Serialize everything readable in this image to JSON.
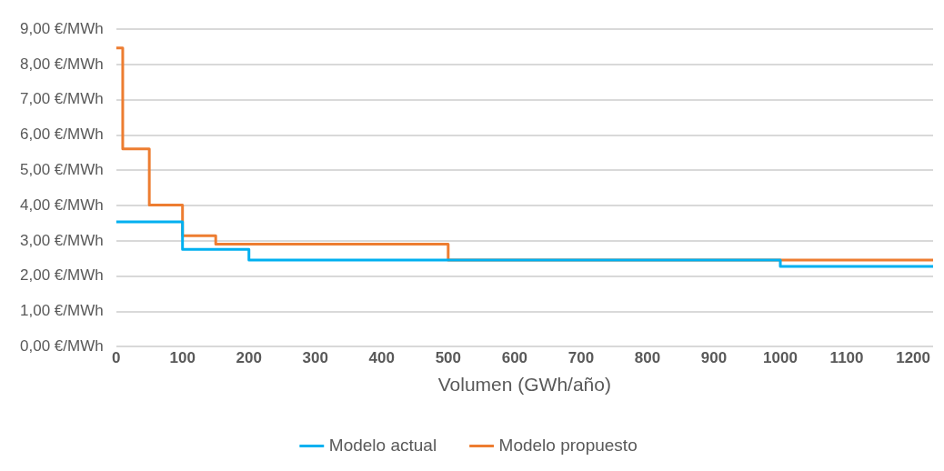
{
  "chart_data": {
    "type": "step",
    "xlabel": "Volumen (GWh/año)",
    "xlim": [
      0,
      1230
    ],
    "xticks": [
      0,
      100,
      200,
      300,
      400,
      500,
      600,
      700,
      800,
      900,
      1000,
      1100,
      1200
    ],
    "ylim": [
      0,
      9
    ],
    "yticks": [
      {
        "value": 0,
        "label": "0,00 €/MWh"
      },
      {
        "value": 1,
        "label": "1,00 €/MWh"
      },
      {
        "value": 2,
        "label": "2,00 €/MWh"
      },
      {
        "value": 3,
        "label": "3,00 €/MWh"
      },
      {
        "value": 4,
        "label": "4,00 €/MWh"
      },
      {
        "value": 5,
        "label": "5,00 €/MWh"
      },
      {
        "value": 6,
        "label": "6,00 €/MWh"
      },
      {
        "value": 7,
        "label": "7,00 €/MWh"
      },
      {
        "value": 8,
        "label": "8,00 €/MWh"
      },
      {
        "value": 9,
        "label": "9,00 €/MWh"
      }
    ],
    "grid": "y",
    "legend": "bottom",
    "series": [
      {
        "name": "Modelo actual",
        "color": "#00b0f0",
        "x": [
          0,
          100,
          200,
          1000,
          1230
        ],
        "values": [
          3.54,
          2.76,
          2.46,
          2.28,
          2.28
        ]
      },
      {
        "name": "Modelo propuesto",
        "color": "#ed7d31",
        "x": [
          0,
          10,
          50,
          100,
          150,
          500,
          1230
        ],
        "values": [
          8.47,
          5.61,
          4.02,
          3.15,
          2.91,
          2.46,
          2.46
        ]
      }
    ]
  }
}
